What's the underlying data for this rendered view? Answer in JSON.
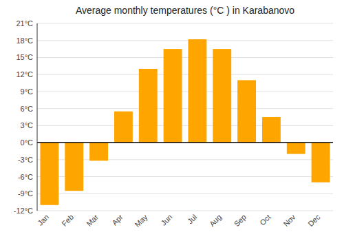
{
  "chart_data": {
    "type": "bar",
    "title": "Average monthly temperatures (°C ) in Karabanovo",
    "categories": [
      "Jan",
      "Feb",
      "Mar",
      "Apr",
      "May",
      "Jun",
      "Jul",
      "Aug",
      "Sep",
      "Oct",
      "Nov",
      "Dec"
    ],
    "values": [
      -11,
      -8.5,
      -3.2,
      5.5,
      13,
      16.5,
      18.2,
      16.5,
      11,
      4.5,
      -2,
      -7
    ],
    "color": "#FFA500",
    "ylim": [
      -12,
      21
    ],
    "yticks": [
      {
        "value": -12,
        "label": "-12°C"
      },
      {
        "value": -9,
        "label": "-9°C"
      },
      {
        "value": -6,
        "label": "-6°C"
      },
      {
        "value": -3,
        "label": "-3°C"
      },
      {
        "value": 0,
        "label": "0°C"
      },
      {
        "value": 3,
        "label": "3°C"
      },
      {
        "value": 6,
        "label": "6°C"
      },
      {
        "value": 9,
        "label": "9°C"
      },
      {
        "value": 12,
        "label": "12°C"
      },
      {
        "value": 15,
        "label": "15°C"
      },
      {
        "value": 18,
        "label": "18°C"
      },
      {
        "value": 21,
        "label": "21°C"
      }
    ],
    "grid": true
  }
}
